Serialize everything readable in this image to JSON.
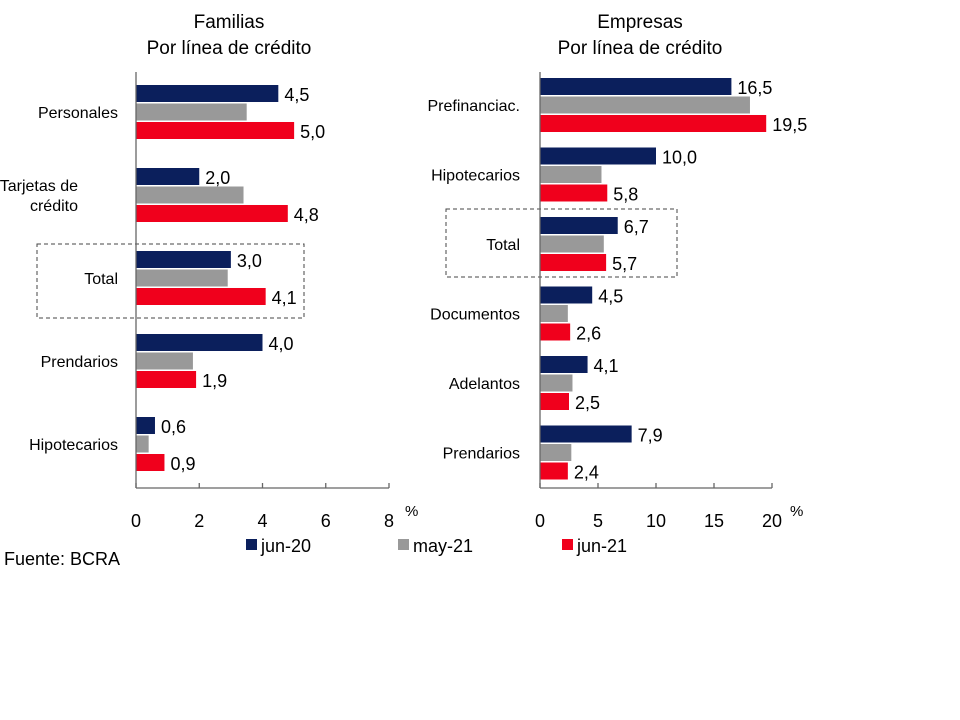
{
  "source": "Fuente: BCRA",
  "legend": [
    {
      "name": "jun-20",
      "color": "#0b1f5c"
    },
    {
      "name": "may-21",
      "color": "#999999"
    },
    {
      "name": "jun-21",
      "color": "#f0001c"
    }
  ],
  "chart_data": [
    {
      "type": "bar",
      "orientation": "horizontal",
      "title": "Familias",
      "subtitle": "Por línea de crédito",
      "xlabel": "%",
      "xlim": [
        0,
        8
      ],
      "xticks": [
        0,
        2,
        4,
        6,
        8
      ],
      "categories": [
        "Personales",
        "Tarjetas de crédito",
        "Total",
        "Prendarios",
        "Hipotecarios"
      ],
      "category_lines": [
        [
          "Personales"
        ],
        [
          "Tarjetas de",
          "crédito"
        ],
        [
          "Total"
        ],
        [
          "Prendarios"
        ],
        [
          "Hipotecarios"
        ]
      ],
      "highlight": "Total",
      "series": [
        {
          "name": "jun-20",
          "values": [
            4.5,
            2.0,
            3.0,
            4.0,
            0.6
          ],
          "labels": [
            "4,5",
            "2,0",
            "3,0",
            "4,0",
            "0,6"
          ]
        },
        {
          "name": "may-21",
          "values": [
            3.5,
            3.4,
            2.9,
            1.8,
            0.4
          ],
          "labels": null
        },
        {
          "name": "jun-21",
          "values": [
            5.0,
            4.8,
            4.1,
            1.9,
            0.9
          ],
          "labels": [
            "5,0",
            "4,8",
            "4,1",
            "1,9",
            "0,9"
          ]
        }
      ]
    },
    {
      "type": "bar",
      "orientation": "horizontal",
      "title": "Empresas",
      "subtitle": "Por línea de crédito",
      "xlabel": "%",
      "xlim": [
        0,
        20
      ],
      "xticks": [
        0,
        5,
        10,
        15,
        20
      ],
      "categories": [
        "Prefinanciac.",
        "Hipotecarios",
        "Total",
        "Documentos",
        "Adelantos",
        "Prendarios"
      ],
      "category_lines": [
        [
          "Prefinanciac."
        ],
        [
          "Hipotecarios"
        ],
        [
          "Total"
        ],
        [
          "Documentos"
        ],
        [
          "Adelantos"
        ],
        [
          "Prendarios"
        ]
      ],
      "highlight": "Total",
      "series": [
        {
          "name": "jun-20",
          "values": [
            16.5,
            10.0,
            6.7,
            4.5,
            4.1,
            7.9
          ],
          "labels": [
            "16,5",
            "10,0",
            "6,7",
            "4,5",
            "4,1",
            "7,9"
          ]
        },
        {
          "name": "may-21",
          "values": [
            18.1,
            5.3,
            5.5,
            2.4,
            2.8,
            2.7
          ],
          "labels": null
        },
        {
          "name": "jun-21",
          "values": [
            19.5,
            5.8,
            5.7,
            2.6,
            2.5,
            2.4
          ],
          "labels": [
            "19,5",
            "5,8",
            "5,7",
            "2,6",
            "2,5",
            "2,4"
          ]
        }
      ]
    }
  ]
}
